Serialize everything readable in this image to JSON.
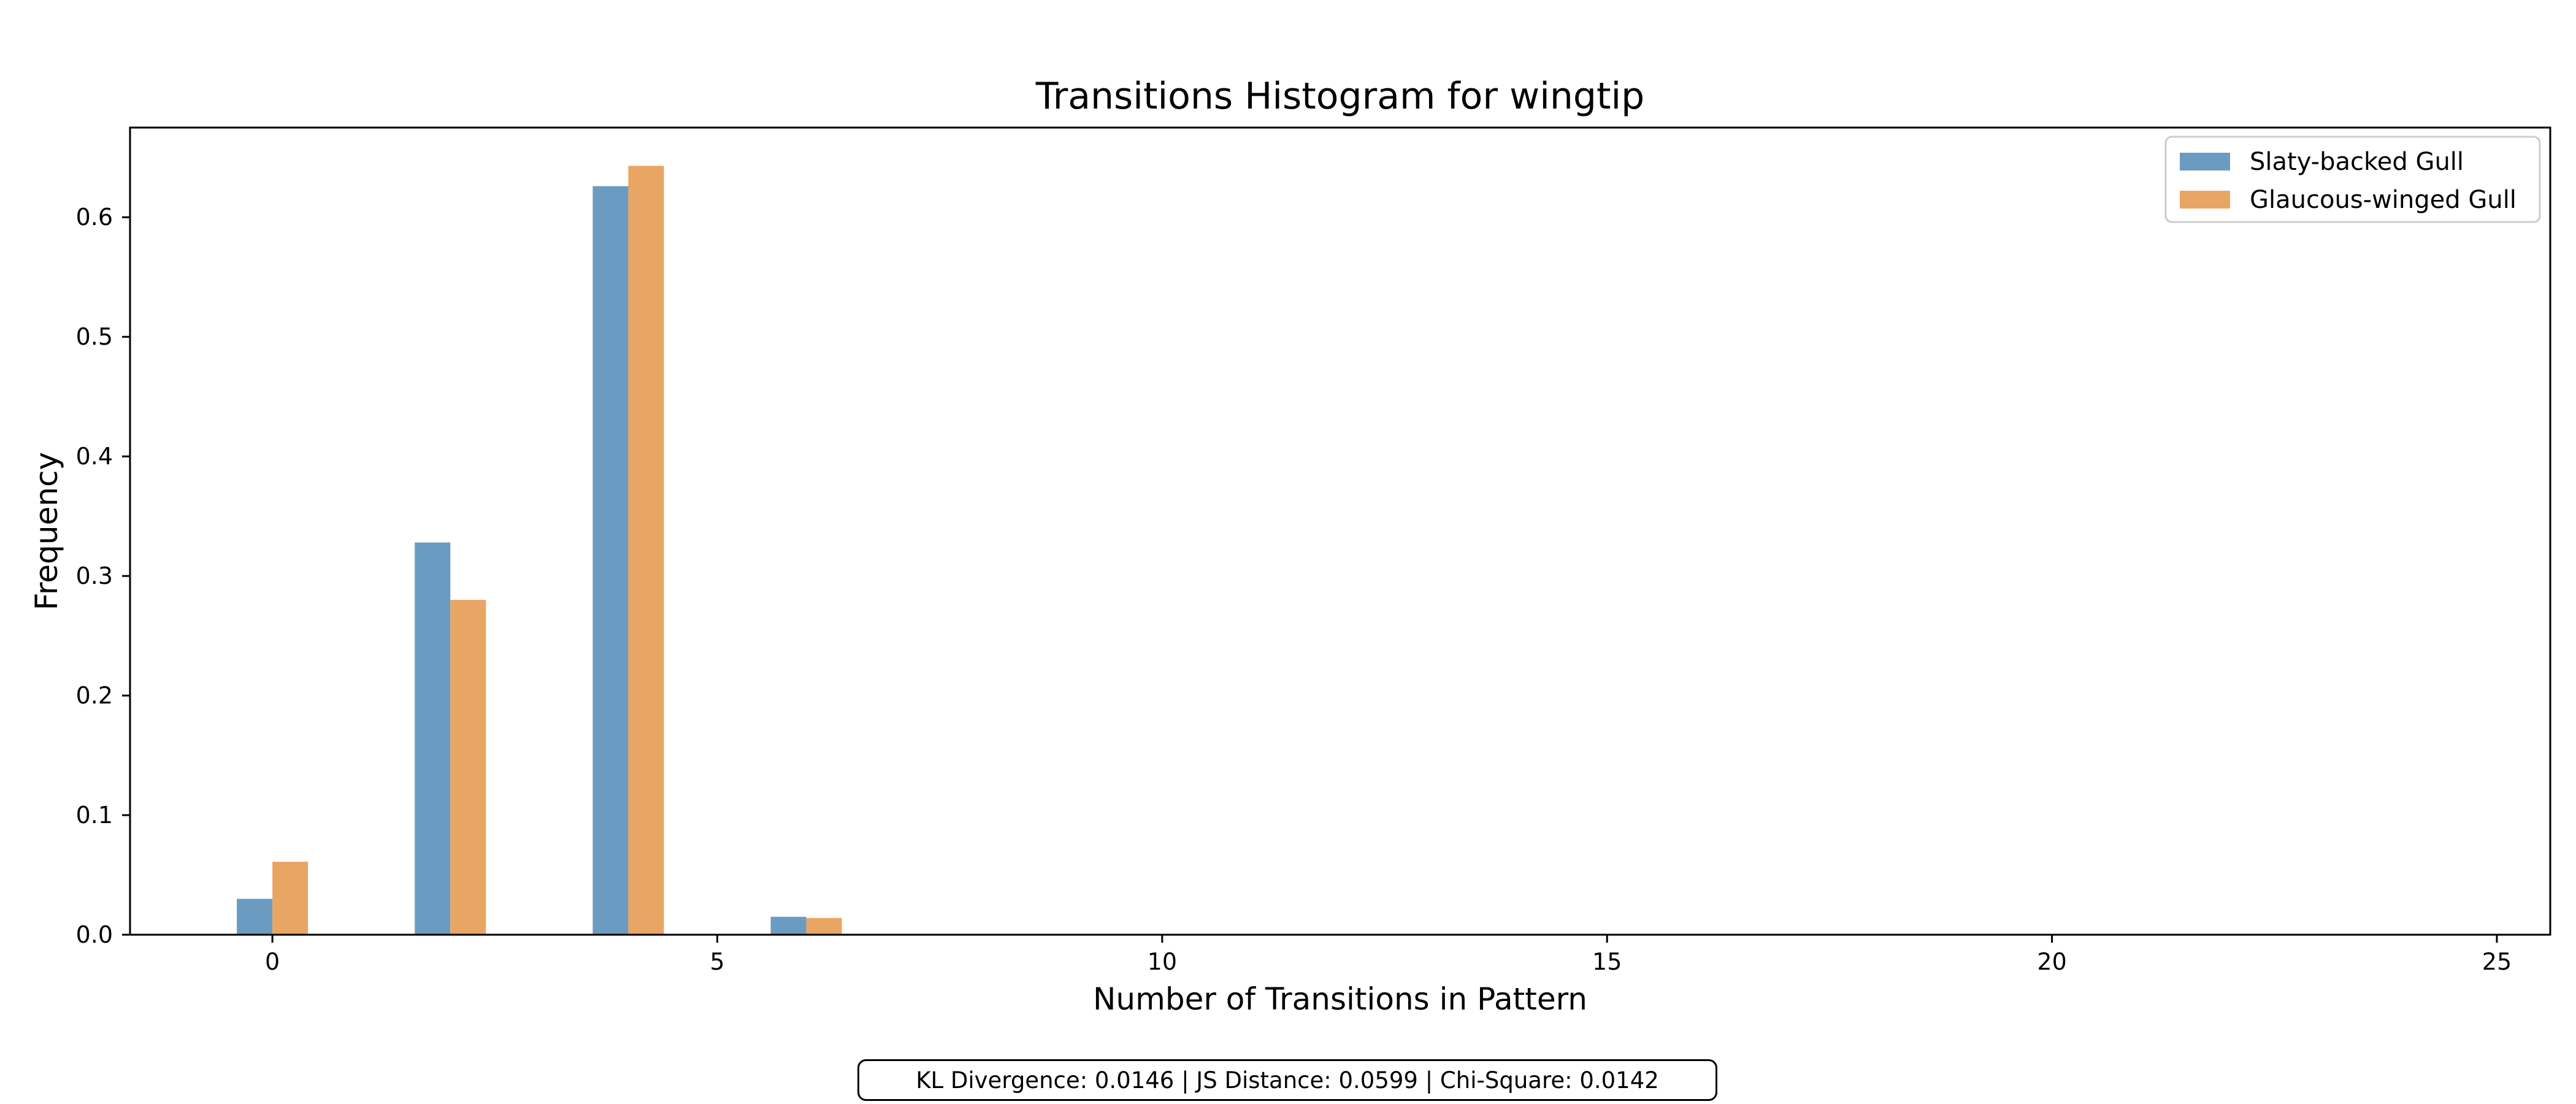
{
  "chart_data": {
    "type": "bar",
    "title": "Transitions Histogram for wingtip",
    "xlabel": "Number of Transitions in Pattern",
    "ylabel": "Frequency",
    "xlim": [
      -1.6,
      25.6
    ],
    "ylim": [
      0,
      0.675
    ],
    "xticks": [
      0,
      5,
      10,
      15,
      20,
      25
    ],
    "yticks": [
      0.0,
      0.1,
      0.2,
      0.3,
      0.4,
      0.5,
      0.6
    ],
    "bar_width": 0.4,
    "legend_position": "top-right",
    "grid": false,
    "series": [
      {
        "name": "Slaty-backed Gull",
        "color": "#6b9bc0",
        "x": [
          0,
          2,
          4,
          6
        ],
        "values": [
          0.03,
          0.328,
          0.626,
          0.015
        ]
      },
      {
        "name": "Glaucous-winged Gull",
        "color": "#e9a564",
        "x": [
          0,
          2,
          4,
          6
        ],
        "values": [
          0.061,
          0.28,
          0.643,
          0.014
        ]
      }
    ]
  },
  "stats_text": "KL Divergence: 0.0146 | JS Distance: 0.0599 | Chi-Square: 0.0142"
}
